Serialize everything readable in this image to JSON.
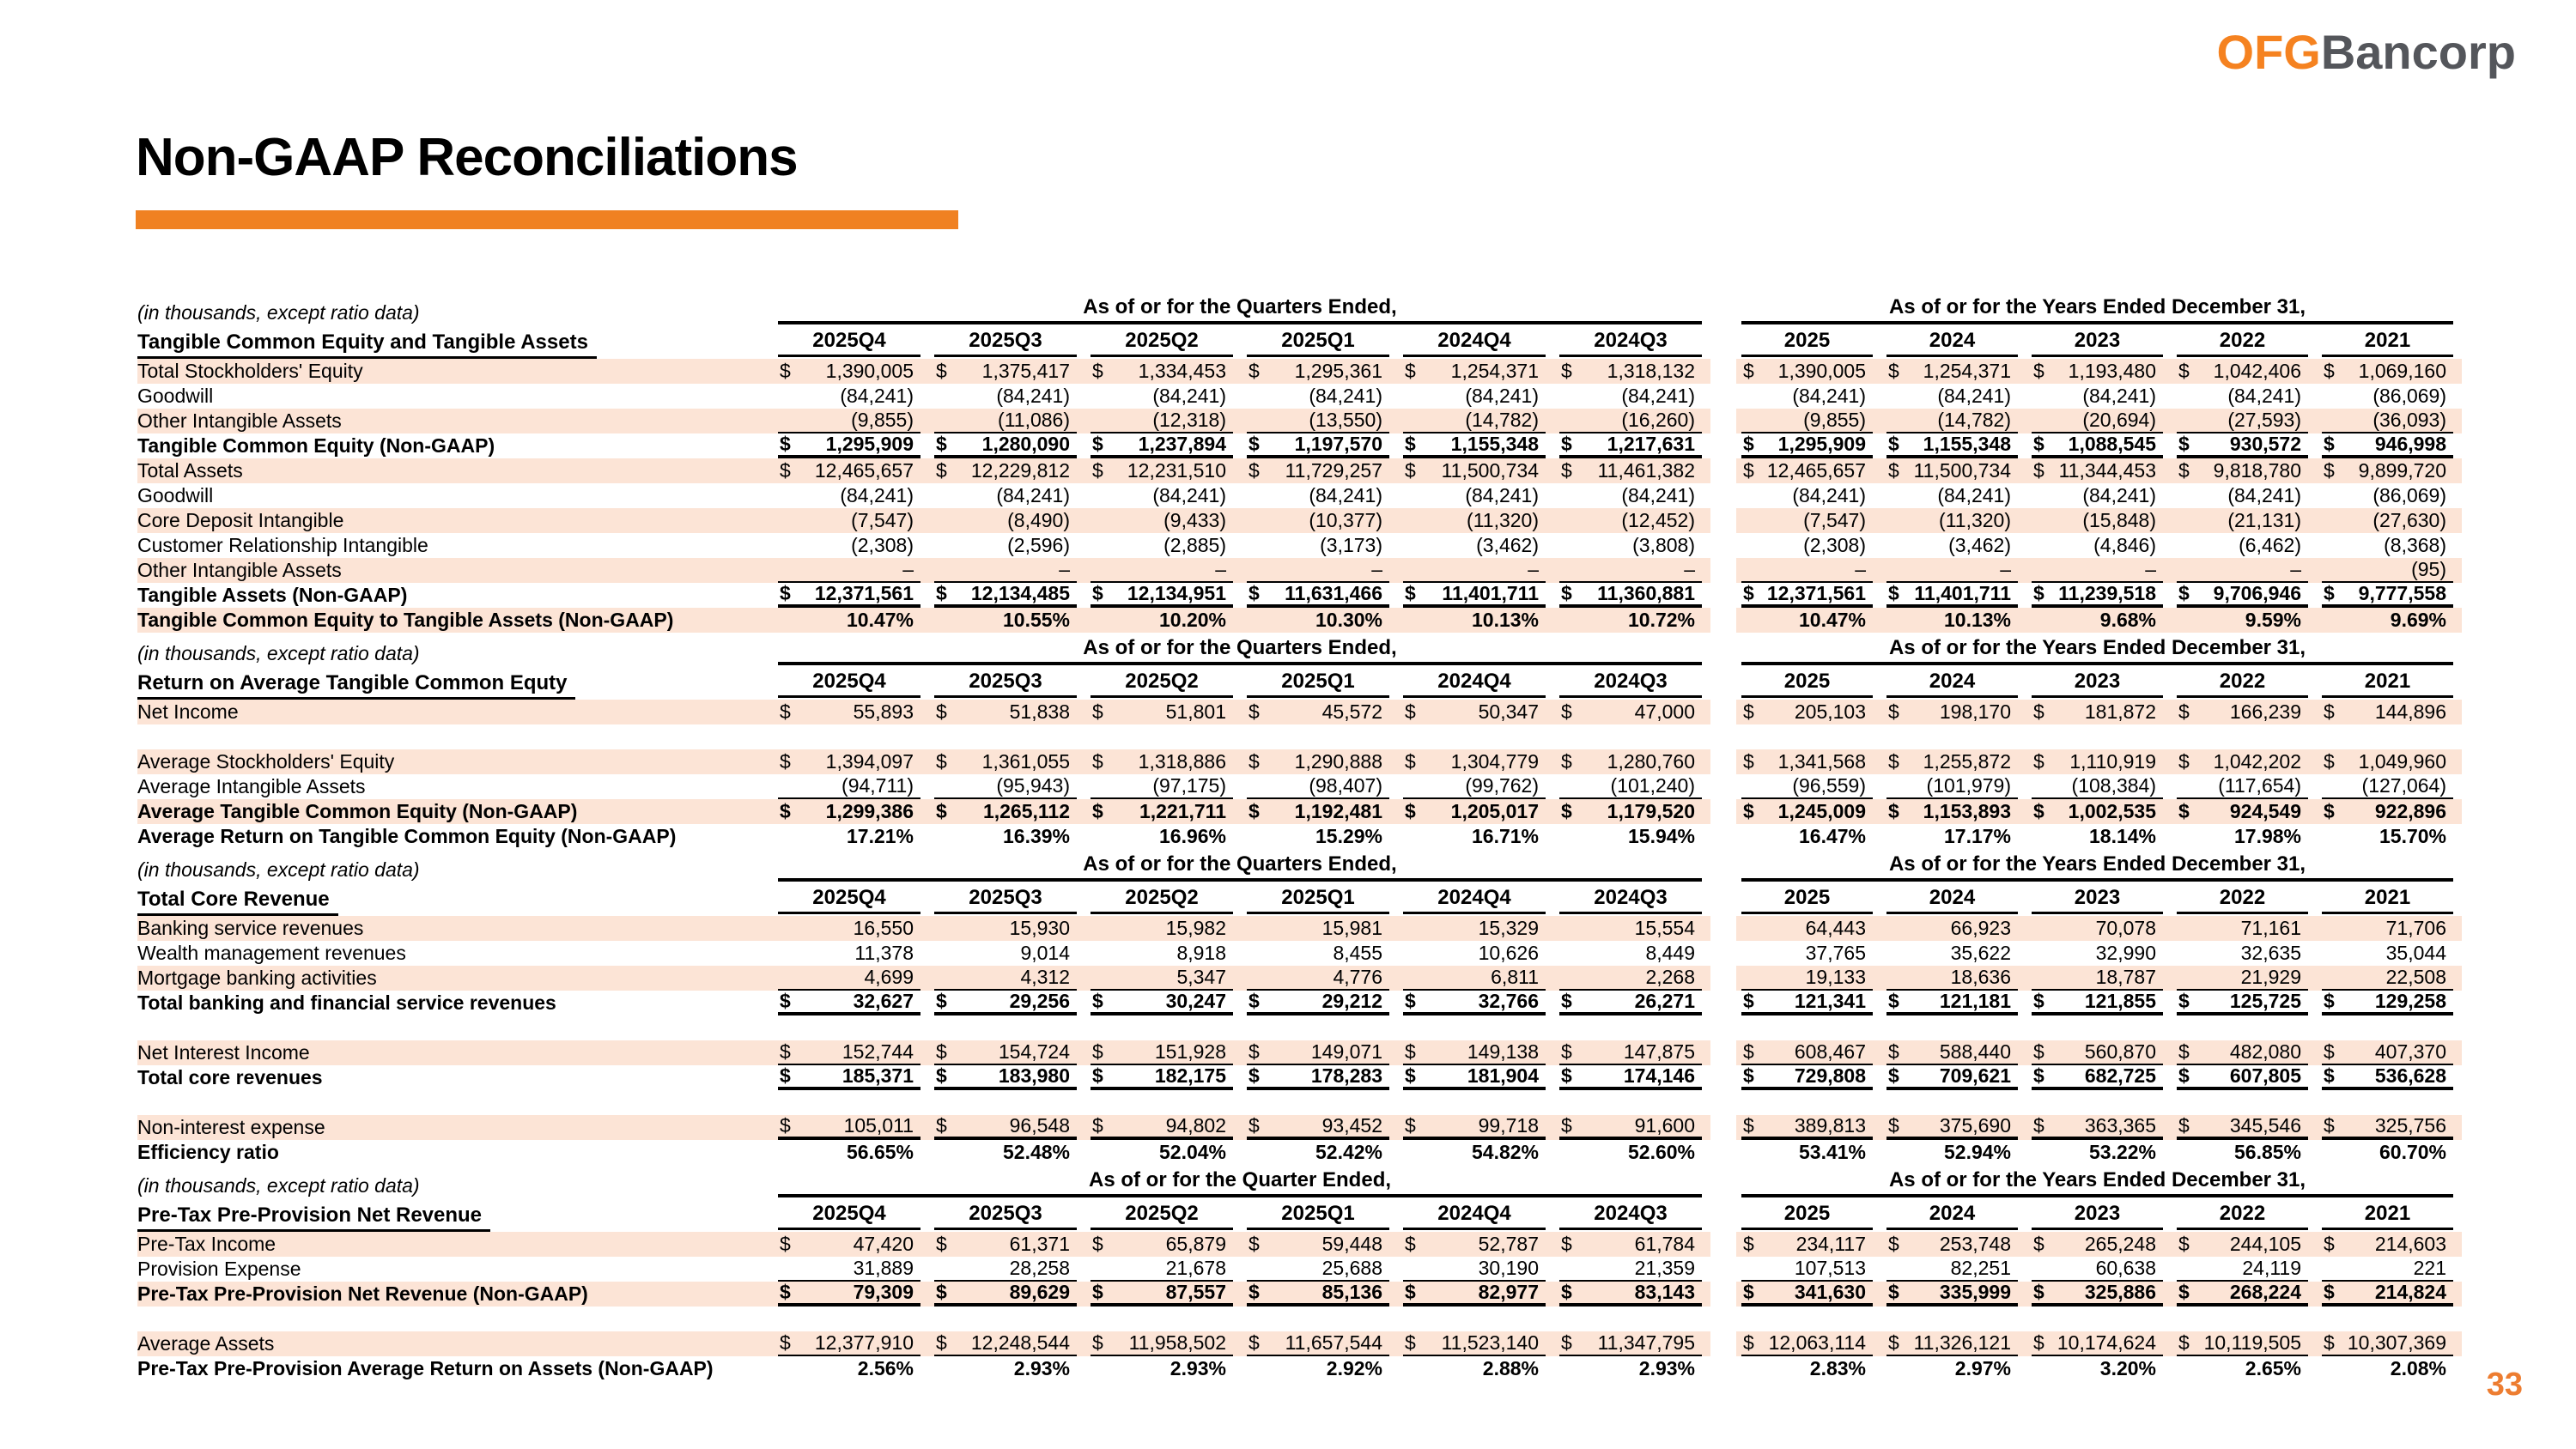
{
  "logo": {
    "ofg": "OFG",
    "bancorp": "Bancorp"
  },
  "page": {
    "title": "Non-GAAP Reconciliations",
    "page_number": "33"
  },
  "colors": {
    "accent_orange": "#F08122",
    "logo_orange": "#F58220",
    "logo_gray": "#54565B",
    "row_stripe": "#FCE4D6"
  },
  "headers": {
    "meta": "(in thousands, except ratio data)",
    "quarter_cols": [
      "2025Q4",
      "2025Q3",
      "2025Q2",
      "2025Q1",
      "2024Q4",
      "2024Q3"
    ],
    "year_cols": [
      "2025",
      "2024",
      "2023",
      "2022",
      "2021"
    ]
  },
  "tables": [
    {
      "section": "Tangible Common Equity and Tangible Assets",
      "quarters_title": "As of or for the Quarters Ended,",
      "years_title": "As of or for the Years Ended December 31,",
      "rows": [
        {
          "label": "Total Stockholders' Equity",
          "stripe": true,
          "q": [
            "$ 1,390,005",
            "$ 1,375,417",
            "$ 1,334,453",
            "$ 1,295,361",
            "$ 1,254,371",
            "$ 1,318,132"
          ],
          "y": [
            "$ 1,390,005",
            "$ 1,254,371",
            "$ 1,193,480",
            "$ 1,042,406",
            "$ 1,069,160"
          ]
        },
        {
          "label": "Goodwill",
          "stripe": false,
          "q": [
            "(84,241)",
            "(84,241)",
            "(84,241)",
            "(84,241)",
            "(84,241)",
            "(84,241)"
          ],
          "y": [
            "(84,241)",
            "(84,241)",
            "(84,241)",
            "(84,241)",
            "(86,069)"
          ]
        },
        {
          "label": "Other Intangible Assets",
          "stripe": true,
          "border": "thin",
          "q": [
            "(9,855)",
            "(11,086)",
            "(12,318)",
            "(13,550)",
            "(14,782)",
            "(16,260)"
          ],
          "y": [
            "(9,855)",
            "(14,782)",
            "(20,694)",
            "(27,593)",
            "(36,093)"
          ]
        },
        {
          "label": "Tangible Common Equity (Non-GAAP)",
          "bold": true,
          "stripe": false,
          "border": "thick",
          "q": [
            "$ 1,295,909",
            "$ 1,280,090",
            "$ 1,237,894",
            "$ 1,197,570",
            "$ 1,155,348",
            "$ 1,217,631"
          ],
          "y": [
            "$ 1,295,909",
            "$ 1,155,348",
            "$ 1,088,545",
            "$ 930,572",
            "$ 946,998"
          ]
        },
        {
          "label": "Total Assets",
          "stripe": true,
          "q": [
            "$ 12,465,657",
            "$ 12,229,812",
            "$ 12,231,510",
            "$ 11,729,257",
            "$ 11,500,734",
            "$ 11,461,382"
          ],
          "y": [
            "$ 12,465,657",
            "$ 11,500,734",
            "$ 11,344,453",
            "$ 9,818,780",
            "$ 9,899,720"
          ]
        },
        {
          "label": "Goodwill",
          "stripe": false,
          "q": [
            "(84,241)",
            "(84,241)",
            "(84,241)",
            "(84,241)",
            "(84,241)",
            "(84,241)"
          ],
          "y": [
            "(84,241)",
            "(84,241)",
            "(84,241)",
            "(84,241)",
            "(86,069)"
          ]
        },
        {
          "label": "Core Deposit Intangible",
          "stripe": true,
          "q": [
            "(7,547)",
            "(8,490)",
            "(9,433)",
            "(10,377)",
            "(11,320)",
            "(12,452)"
          ],
          "y": [
            "(7,547)",
            "(11,320)",
            "(15,848)",
            "(21,131)",
            "(27,630)"
          ]
        },
        {
          "label": "Customer Relationship Intangible",
          "stripe": false,
          "q": [
            "(2,308)",
            "(2,596)",
            "(2,885)",
            "(3,173)",
            "(3,462)",
            "(3,808)"
          ],
          "y": [
            "(2,308)",
            "(3,462)",
            "(4,846)",
            "(6,462)",
            "(8,368)"
          ]
        },
        {
          "label": "Other Intangible Assets",
          "stripe": true,
          "border": "thin",
          "q": [
            "–",
            "–",
            "–",
            "–",
            "–",
            "–"
          ],
          "y": [
            "–",
            "–",
            "–",
            "–",
            "(95)"
          ]
        },
        {
          "label": "Tangible Assets (Non-GAAP)",
          "bold": true,
          "stripe": false,
          "border": "thick",
          "q": [
            "$ 12,371,561",
            "$ 12,134,485",
            "$ 12,134,951",
            "$ 11,631,466",
            "$ 11,401,711",
            "$ 11,360,881"
          ],
          "y": [
            "$ 12,371,561",
            "$ 11,401,711",
            "$ 11,239,518",
            "$ 9,706,946",
            "$ 9,777,558"
          ]
        },
        {
          "label": "Tangible Common Equity to Tangible Assets (Non-GAAP)",
          "bold": true,
          "stripe": true,
          "q": [
            "10.47%",
            "10.55%",
            "10.20%",
            "10.30%",
            "10.13%",
            "10.72%"
          ],
          "y": [
            "10.47%",
            "10.13%",
            "9.68%",
            "9.59%",
            "9.69%"
          ]
        }
      ]
    },
    {
      "section": "Return on Average Tangible Common Equty",
      "quarters_title": "As of or for the Quarters Ended,",
      "years_title": "As of or for the Years Ended December 31,",
      "rows": [
        {
          "label": "Net Income",
          "stripe": true,
          "q": [
            "$ 55,893",
            "$ 51,838",
            "$ 51,801",
            "$ 45,572",
            "$ 50,347",
            "$ 47,000"
          ],
          "y": [
            "$ 205,103",
            "$ 198,170",
            "$ 181,872",
            "$ 166,239",
            "$ 144,896"
          ]
        },
        {
          "blank": true
        },
        {
          "label": "Average Stockholders' Equity",
          "stripe": true,
          "q": [
            "$ 1,394,097",
            "$ 1,361,055",
            "$ 1,318,886",
            "$ 1,290,888",
            "$ 1,304,779",
            "$ 1,280,760"
          ],
          "y": [
            "$ 1,341,568",
            "$ 1,255,872",
            "$ 1,110,919",
            "$ 1,042,202",
            "$ 1,049,960"
          ]
        },
        {
          "label": "Average Intangible Assets",
          "stripe": false,
          "border": "thin",
          "q": [
            "(94,711)",
            "(95,943)",
            "(97,175)",
            "(98,407)",
            "(99,762)",
            "(101,240)"
          ],
          "y": [
            "(96,559)",
            "(101,979)",
            "(108,384)",
            "(117,654)",
            "(127,064)"
          ]
        },
        {
          "label": "Average Tangible Common Equity (Non-GAAP)",
          "bold": true,
          "stripe": true,
          "q": [
            "$ 1,299,386",
            "$ 1,265,112",
            "$ 1,221,711",
            "$ 1,192,481",
            "$ 1,205,017",
            "$ 1,179,520"
          ],
          "y": [
            "$ 1,245,009",
            "$ 1,153,893",
            "$ 1,002,535",
            "$ 924,549",
            "$ 922,896"
          ]
        },
        {
          "label": "Average Return on Tangible Common Equity (Non-GAAP)",
          "bold": true,
          "stripe": false,
          "q": [
            "17.21%",
            "16.39%",
            "16.96%",
            "15.29%",
            "16.71%",
            "15.94%"
          ],
          "y": [
            "16.47%",
            "17.17%",
            "18.14%",
            "17.98%",
            "15.70%"
          ]
        }
      ]
    },
    {
      "section": "Total Core Revenue",
      "quarters_title": "As of or for the Quarters Ended,",
      "years_title": "As of or for the Years Ended December 31,",
      "rows": [
        {
          "label": "Banking service revenues",
          "stripe": true,
          "q": [
            "16,550",
            "15,930",
            "15,982",
            "15,981",
            "15,329",
            "15,554"
          ],
          "y": [
            "64,443",
            "66,923",
            "70,078",
            "71,161",
            "71,706"
          ]
        },
        {
          "label": "Wealth management revenues",
          "stripe": false,
          "q": [
            "11,378",
            "9,014",
            "8,918",
            "8,455",
            "10,626",
            "8,449"
          ],
          "y": [
            "37,765",
            "35,622",
            "32,990",
            "32,635",
            "35,044"
          ]
        },
        {
          "label": "Mortgage banking activities",
          "stripe": true,
          "border": "thin",
          "q": [
            "4,699",
            "4,312",
            "5,347",
            "4,776",
            "6,811",
            "2,268"
          ],
          "y": [
            "19,133",
            "18,636",
            "18,787",
            "21,929",
            "22,508"
          ]
        },
        {
          "label": "Total banking and financial service revenues",
          "bold": true,
          "stripe": false,
          "border": "thick",
          "q": [
            "$ 32,627",
            "$ 29,256",
            "$ 30,247",
            "$ 29,212",
            "$ 32,766",
            "$ 26,271"
          ],
          "y": [
            "$ 121,341",
            "$ 121,181",
            "$ 121,855",
            "$ 125,725",
            "$ 129,258"
          ]
        },
        {
          "blank": true
        },
        {
          "label": "Net Interest Income",
          "stripe": true,
          "border": "thin",
          "q": [
            "$ 152,744",
            "$ 154,724",
            "$ 151,928",
            "$ 149,071",
            "$ 149,138",
            "$ 147,875"
          ],
          "y": [
            "$ 608,467",
            "$ 588,440",
            "$ 560,870",
            "$ 482,080",
            "$ 407,370"
          ]
        },
        {
          "label": "Total core revenues",
          "bold": true,
          "stripe": false,
          "border": "thick",
          "q": [
            "$ 185,371",
            "$ 183,980",
            "$ 182,175",
            "$ 178,283",
            "$ 181,904",
            "$ 174,146"
          ],
          "y": [
            "$ 729,808",
            "$ 709,621",
            "$ 682,725",
            "$ 607,805",
            "$ 536,628"
          ]
        },
        {
          "blank": true
        },
        {
          "label": "Non-interest expense",
          "stripe": true,
          "border": "thick",
          "q": [
            "$ 105,011",
            "$ 96,548",
            "$ 94,802",
            "$ 93,452",
            "$ 99,718",
            "$ 91,600"
          ],
          "y": [
            "$ 389,813",
            "$ 375,690",
            "$ 363,365",
            "$ 345,546",
            "$ 325,756"
          ]
        },
        {
          "label": "Efficiency ratio",
          "bold": true,
          "stripe": false,
          "q": [
            "56.65%",
            "52.48%",
            "52.04%",
            "52.42%",
            "54.82%",
            "52.60%"
          ],
          "y": [
            "53.41%",
            "52.94%",
            "53.22%",
            "56.85%",
            "60.70%"
          ]
        }
      ]
    },
    {
      "section": "Pre-Tax Pre-Provision Net Revenue",
      "quarters_title": "As of or for the Quarter Ended,",
      "years_title": "As of or for the Years Ended December 31,",
      "rows": [
        {
          "label": "Pre-Tax Income",
          "stripe": true,
          "q": [
            "$ 47,420",
            "$ 61,371",
            "$ 65,879",
            "$ 59,448",
            "$ 52,787",
            "$ 61,784"
          ],
          "y": [
            "$ 234,117",
            "$ 253,748",
            "$ 265,248",
            "$ 244,105",
            "$ 214,603"
          ]
        },
        {
          "label": "Provision Expense",
          "stripe": false,
          "border": "thin",
          "q": [
            "31,889",
            "28,258",
            "21,678",
            "25,688",
            "30,190",
            "21,359"
          ],
          "y": [
            "107,513",
            "82,251",
            "60,638",
            "24,119",
            "221"
          ]
        },
        {
          "label": "Pre-Tax Pre-Provision Net Revenue (Non-GAAP)",
          "bold": true,
          "stripe": true,
          "border": "thick",
          "q": [
            "$ 79,309",
            "$ 89,629",
            "$ 87,557",
            "$ 85,136",
            "$ 82,977",
            "$ 83,143"
          ],
          "y": [
            "$ 341,630",
            "$ 335,999",
            "$ 325,886",
            "$ 268,224",
            "$ 214,824"
          ]
        },
        {
          "blank": true
        },
        {
          "label": "Average Assets",
          "stripe": true,
          "border": "thin",
          "q": [
            "$ 12,377,910",
            "$ 12,248,544",
            "$ 11,958,502",
            "$ 11,657,544",
            "$ 11,523,140",
            "$ 11,347,795"
          ],
          "y": [
            "$ 12,063,114",
            "$ 11,326,121",
            "$ 10,174,624",
            "$ 10,119,505",
            "$ 10,307,369"
          ]
        },
        {
          "label": "Pre-Tax Pre-Provision Average Return on Assets (Non-GAAP)",
          "bold": true,
          "stripe": false,
          "q": [
            "2.56%",
            "2.93%",
            "2.93%",
            "2.92%",
            "2.88%",
            "2.93%"
          ],
          "y": [
            "2.83%",
            "2.97%",
            "3.20%",
            "2.65%",
            "2.08%"
          ]
        }
      ]
    }
  ]
}
